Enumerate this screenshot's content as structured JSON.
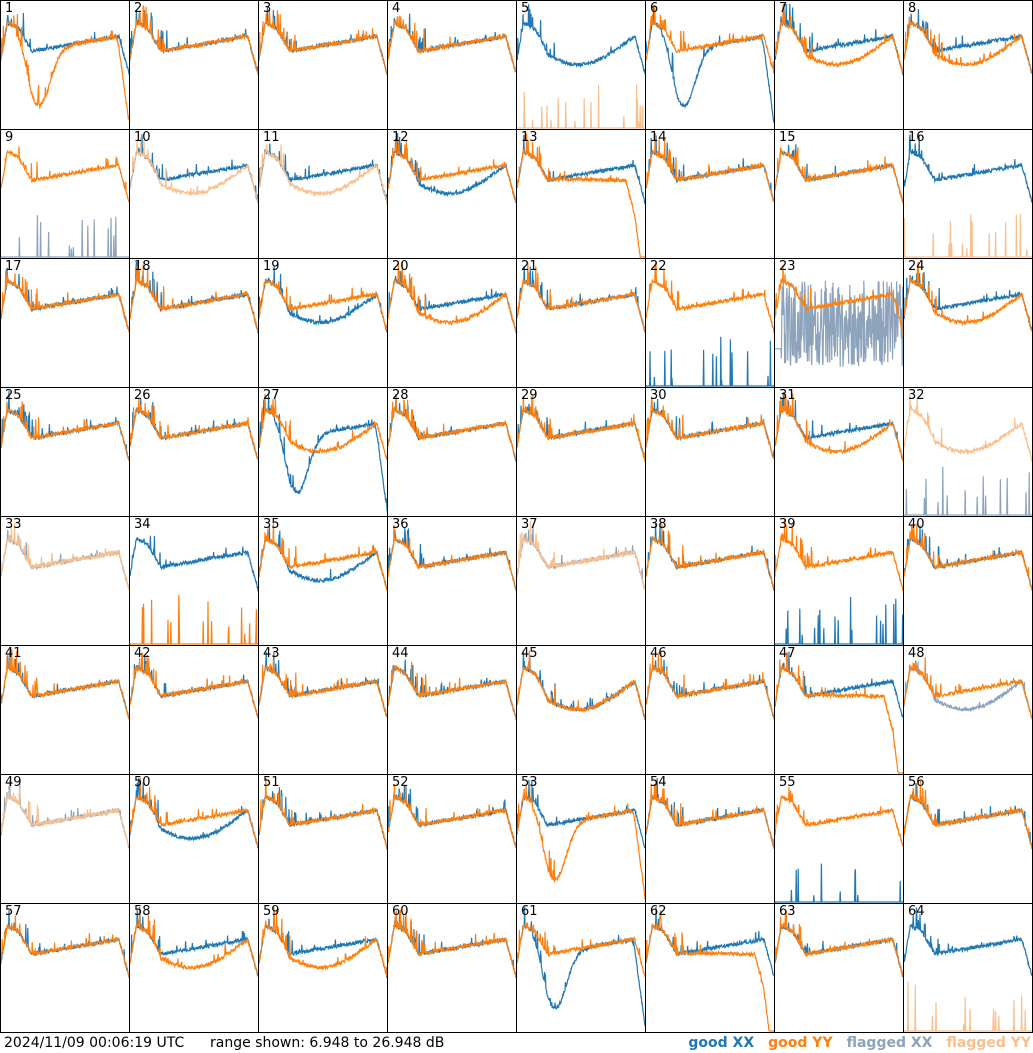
{
  "footer": {
    "timestamp": "2024/11/09 00:06:19 UTC",
    "range_text": "range shown: 6.948 to 26.948 dB"
  },
  "legend": [
    {
      "id": "good_xx",
      "label": "good XX",
      "color": "#1f77b4"
    },
    {
      "id": "good_yy",
      "label": "good YY",
      "color": "#ff7f0e"
    },
    {
      "id": "flagged_xx",
      "label": "flagged XX",
      "color": "#8ca3bb"
    },
    {
      "id": "flagged_yy",
      "label": "flagged YY",
      "color": "#f9c08e"
    }
  ],
  "chart_data": {
    "type": "line",
    "layout": "8x8 small multiples",
    "ylim": [
      6.948,
      26.948
    ],
    "y_unit": "dB",
    "panels": [
      {
        "n": 1,
        "xx": "good",
        "yy": "good",
        "shape_xx": "normal",
        "shape_yy": "dip"
      },
      {
        "n": 2,
        "xx": "good",
        "yy": "good",
        "shape_xx": "normal",
        "shape_yy": "normal"
      },
      {
        "n": 3,
        "xx": "good",
        "yy": "good",
        "shape_xx": "normal",
        "shape_yy": "normal"
      },
      {
        "n": 4,
        "xx": "good",
        "yy": "good",
        "shape_xx": "normal",
        "shape_yy": "normal"
      },
      {
        "n": 5,
        "xx": "good",
        "yy": "flagged",
        "shape_xx": "bowl",
        "shape_yy": "spikes"
      },
      {
        "n": 6,
        "xx": "good",
        "yy": "good",
        "shape_xx": "dip",
        "shape_yy": "normal"
      },
      {
        "n": 7,
        "xx": "good",
        "yy": "good",
        "shape_xx": "normal",
        "shape_yy": "bowl"
      },
      {
        "n": 8,
        "xx": "good",
        "yy": "good",
        "shape_xx": "normal",
        "shape_yy": "bowl"
      },
      {
        "n": 9,
        "xx": "flagged",
        "yy": "good",
        "shape_xx": "spikes",
        "shape_yy": "normal"
      },
      {
        "n": 10,
        "xx": "good",
        "yy": "flagged",
        "shape_xx": "normal",
        "shape_yy": "bowl"
      },
      {
        "n": 11,
        "xx": "good",
        "yy": "flagged",
        "shape_xx": "normal",
        "shape_yy": "bowl"
      },
      {
        "n": 12,
        "xx": "good",
        "yy": "good",
        "shape_xx": "bowl",
        "shape_yy": "normal"
      },
      {
        "n": 13,
        "xx": "good",
        "yy": "good",
        "shape_xx": "normal",
        "shape_yy": "droop"
      },
      {
        "n": 14,
        "xx": "good",
        "yy": "good",
        "shape_xx": "normal",
        "shape_yy": "normal"
      },
      {
        "n": 15,
        "xx": "good",
        "yy": "good",
        "shape_xx": "normal",
        "shape_yy": "normal"
      },
      {
        "n": 16,
        "xx": "good",
        "yy": "flagged",
        "shape_xx": "normal",
        "shape_yy": "spikes"
      },
      {
        "n": 17,
        "xx": "good",
        "yy": "good",
        "shape_xx": "normal",
        "shape_yy": "normal"
      },
      {
        "n": 18,
        "xx": "good",
        "yy": "good",
        "shape_xx": "normal",
        "shape_yy": "normal"
      },
      {
        "n": 19,
        "xx": "good",
        "yy": "good",
        "shape_xx": "bowl",
        "shape_yy": "normal"
      },
      {
        "n": 20,
        "xx": "good",
        "yy": "good",
        "shape_xx": "normal",
        "shape_yy": "bowl"
      },
      {
        "n": 21,
        "xx": "good",
        "yy": "good",
        "shape_xx": "normal",
        "shape_yy": "normal"
      },
      {
        "n": 22,
        "xx": "good",
        "yy": "good",
        "shape_xx": "spikes",
        "shape_yy": "normal"
      },
      {
        "n": 23,
        "xx": "flagged",
        "yy": "good",
        "shape_xx": "noise",
        "shape_yy": "normal"
      },
      {
        "n": 24,
        "xx": "good",
        "yy": "good",
        "shape_xx": "normal",
        "shape_yy": "bowl"
      },
      {
        "n": 25,
        "xx": "good",
        "yy": "good",
        "shape_xx": "normal",
        "shape_yy": "normal"
      },
      {
        "n": 26,
        "xx": "good",
        "yy": "good",
        "shape_xx": "normal",
        "shape_yy": "normal"
      },
      {
        "n": 27,
        "xx": "good",
        "yy": "good",
        "shape_xx": "dip",
        "shape_yy": "bowl"
      },
      {
        "n": 28,
        "xx": "good",
        "yy": "good",
        "shape_xx": "normal",
        "shape_yy": "normal"
      },
      {
        "n": 29,
        "xx": "good",
        "yy": "good",
        "shape_xx": "normal",
        "shape_yy": "normal"
      },
      {
        "n": 30,
        "xx": "good",
        "yy": "good",
        "shape_xx": "normal",
        "shape_yy": "normal"
      },
      {
        "n": 31,
        "xx": "good",
        "yy": "good",
        "shape_xx": "normal",
        "shape_yy": "bowl"
      },
      {
        "n": 32,
        "xx": "flagged",
        "yy": "flagged",
        "shape_xx": "spikes",
        "shape_yy": "bowl"
      },
      {
        "n": 33,
        "xx": "flagged",
        "yy": "flagged",
        "shape_xx": "normal",
        "shape_yy": "normal"
      },
      {
        "n": 34,
        "xx": "good",
        "yy": "good",
        "shape_xx": "normal",
        "shape_yy": "spikes"
      },
      {
        "n": 35,
        "xx": "good",
        "yy": "good",
        "shape_xx": "bowl",
        "shape_yy": "normal"
      },
      {
        "n": 36,
        "xx": "good",
        "yy": "good",
        "shape_xx": "normal",
        "shape_yy": "normal"
      },
      {
        "n": 37,
        "xx": "flagged",
        "yy": "flagged",
        "shape_xx": "normal",
        "shape_yy": "normal"
      },
      {
        "n": 38,
        "xx": "good",
        "yy": "good",
        "shape_xx": "normal",
        "shape_yy": "normal"
      },
      {
        "n": 39,
        "xx": "good",
        "yy": "good",
        "shape_xx": "spikes",
        "shape_yy": "normal"
      },
      {
        "n": 40,
        "xx": "good",
        "yy": "good",
        "shape_xx": "normal",
        "shape_yy": "normal"
      },
      {
        "n": 41,
        "xx": "good",
        "yy": "good",
        "shape_xx": "normal",
        "shape_yy": "normal"
      },
      {
        "n": 42,
        "xx": "good",
        "yy": "good",
        "shape_xx": "normal",
        "shape_yy": "normal"
      },
      {
        "n": 43,
        "xx": "good",
        "yy": "good",
        "shape_xx": "normal",
        "shape_yy": "normal"
      },
      {
        "n": 44,
        "xx": "good",
        "yy": "good",
        "shape_xx": "normal",
        "shape_yy": "normal"
      },
      {
        "n": 45,
        "xx": "good",
        "yy": "good",
        "shape_xx": "bowl",
        "shape_yy": "bowl"
      },
      {
        "n": 46,
        "xx": "good",
        "yy": "good",
        "shape_xx": "normal",
        "shape_yy": "normal"
      },
      {
        "n": 47,
        "xx": "good",
        "yy": "good",
        "shape_xx": "normal",
        "shape_yy": "droop"
      },
      {
        "n": 48,
        "xx": "flagged",
        "yy": "good",
        "shape_xx": "bowl",
        "shape_yy": "normal"
      },
      {
        "n": 49,
        "xx": "flagged",
        "yy": "flagged",
        "shape_xx": "normal",
        "shape_yy": "normal"
      },
      {
        "n": 50,
        "xx": "good",
        "yy": "good",
        "shape_xx": "bowl",
        "shape_yy": "normal"
      },
      {
        "n": 51,
        "xx": "good",
        "yy": "good",
        "shape_xx": "normal",
        "shape_yy": "normal"
      },
      {
        "n": 52,
        "xx": "good",
        "yy": "good",
        "shape_xx": "normal",
        "shape_yy": "normal"
      },
      {
        "n": 53,
        "xx": "good",
        "yy": "good",
        "shape_xx": "normal",
        "shape_yy": "dip"
      },
      {
        "n": 54,
        "xx": "good",
        "yy": "good",
        "shape_xx": "normal",
        "shape_yy": "normal"
      },
      {
        "n": 55,
        "xx": "good",
        "yy": "good",
        "shape_xx": "spikes",
        "shape_yy": "normal"
      },
      {
        "n": 56,
        "xx": "good",
        "yy": "good",
        "shape_xx": "normal",
        "shape_yy": "normal"
      },
      {
        "n": 57,
        "xx": "good",
        "yy": "good",
        "shape_xx": "normal",
        "shape_yy": "normal"
      },
      {
        "n": 58,
        "xx": "good",
        "yy": "good",
        "shape_xx": "normal",
        "shape_yy": "bowl"
      },
      {
        "n": 59,
        "xx": "good",
        "yy": "good",
        "shape_xx": "normal",
        "shape_yy": "bowl"
      },
      {
        "n": 60,
        "xx": "good",
        "yy": "good",
        "shape_xx": "normal",
        "shape_yy": "normal"
      },
      {
        "n": 61,
        "xx": "good",
        "yy": "good",
        "shape_xx": "dip",
        "shape_yy": "normal"
      },
      {
        "n": 62,
        "xx": "good",
        "yy": "good",
        "shape_xx": "normal",
        "shape_yy": "droop"
      },
      {
        "n": 63,
        "xx": "good",
        "yy": "good",
        "shape_xx": "normal",
        "shape_yy": "normal"
      },
      {
        "n": 64,
        "xx": "good",
        "yy": "flagged",
        "shape_xx": "normal",
        "shape_yy": "spikes"
      }
    ]
  }
}
